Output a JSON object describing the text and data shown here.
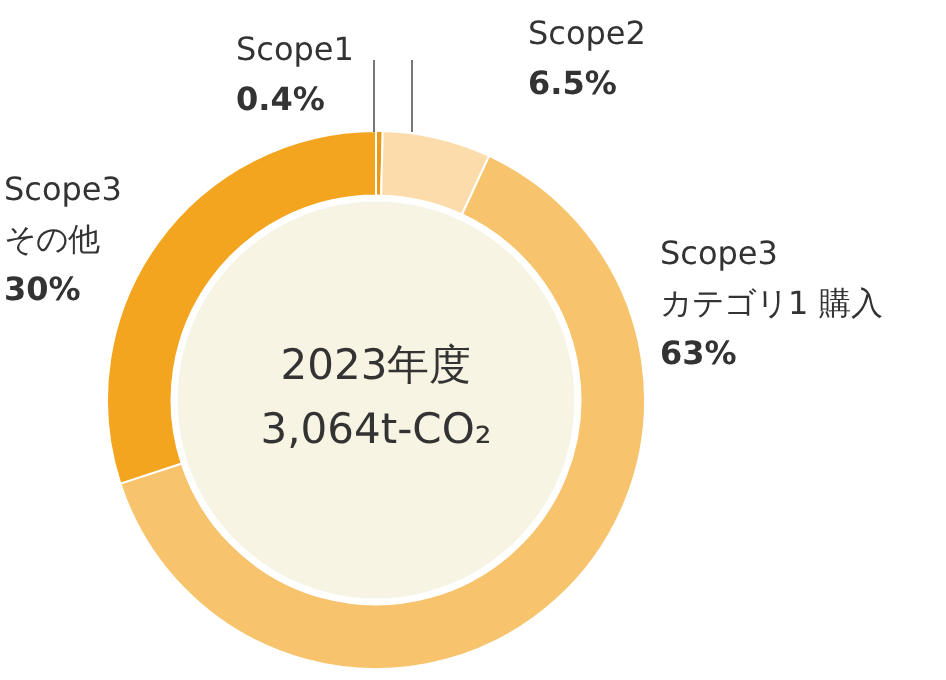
{
  "chart_data": {
    "type": "donut",
    "categories": [
      "Scope1",
      "Scope2",
      "Scope3\nカテゴリ1 購入",
      "Scope3\nその他"
    ],
    "values": [
      0.4,
      6.5,
      63,
      30
    ],
    "colors": [
      "#e89a1a",
      "#fbdcaa",
      "#f7c36c",
      "#f3a51f"
    ],
    "value_labels": [
      "0.4%",
      "6.5%",
      "63%",
      "30%"
    ],
    "annotations": [
      "2023年度",
      "3,064t-CO₂"
    ],
    "legend": false
  }
}
